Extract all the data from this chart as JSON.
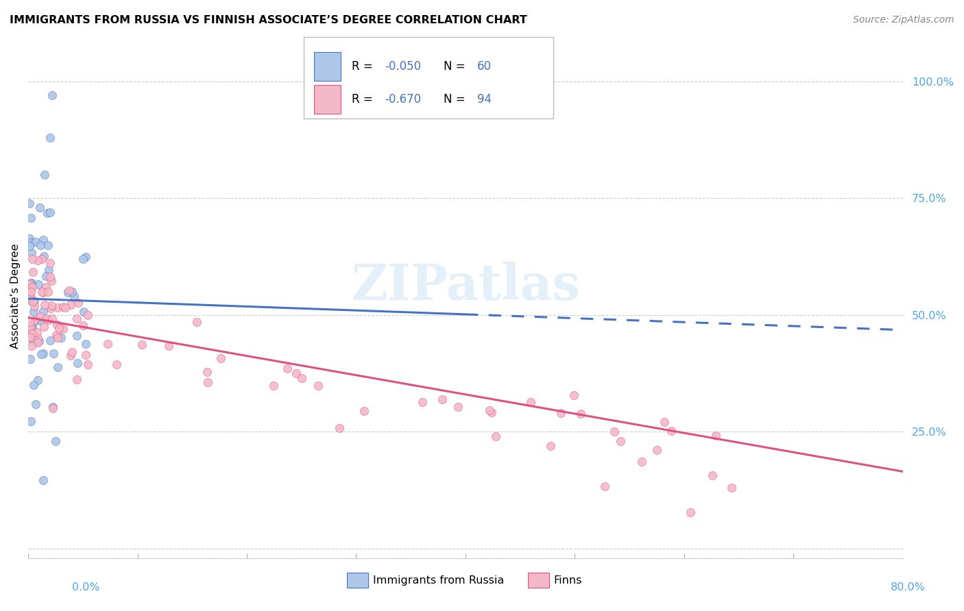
{
  "title": "IMMIGRANTS FROM RUSSIA VS FINNISH ASSOCIATE’S DEGREE CORRELATION CHART",
  "source": "Source: ZipAtlas.com",
  "ylabel": "Associate’s Degree",
  "yticks": [
    0.0,
    0.25,
    0.5,
    0.75,
    1.0
  ],
  "ytick_labels": [
    "",
    "25.0%",
    "50.0%",
    "75.0%",
    "100.0%"
  ],
  "xlim": [
    0.0,
    0.8
  ],
  "ylim": [
    -0.02,
    1.1
  ],
  "color_blue": "#aec6e8",
  "color_pink": "#f5b8c8",
  "line_blue": "#4472c4",
  "line_pink": "#e05080",
  "watermark": "ZIPatlas",
  "blue_line_solid_end": 0.4,
  "blue_line_start_y": 0.535,
  "blue_line_end_y": 0.468,
  "pink_line_start_y": 0.495,
  "pink_line_end_y": 0.165
}
